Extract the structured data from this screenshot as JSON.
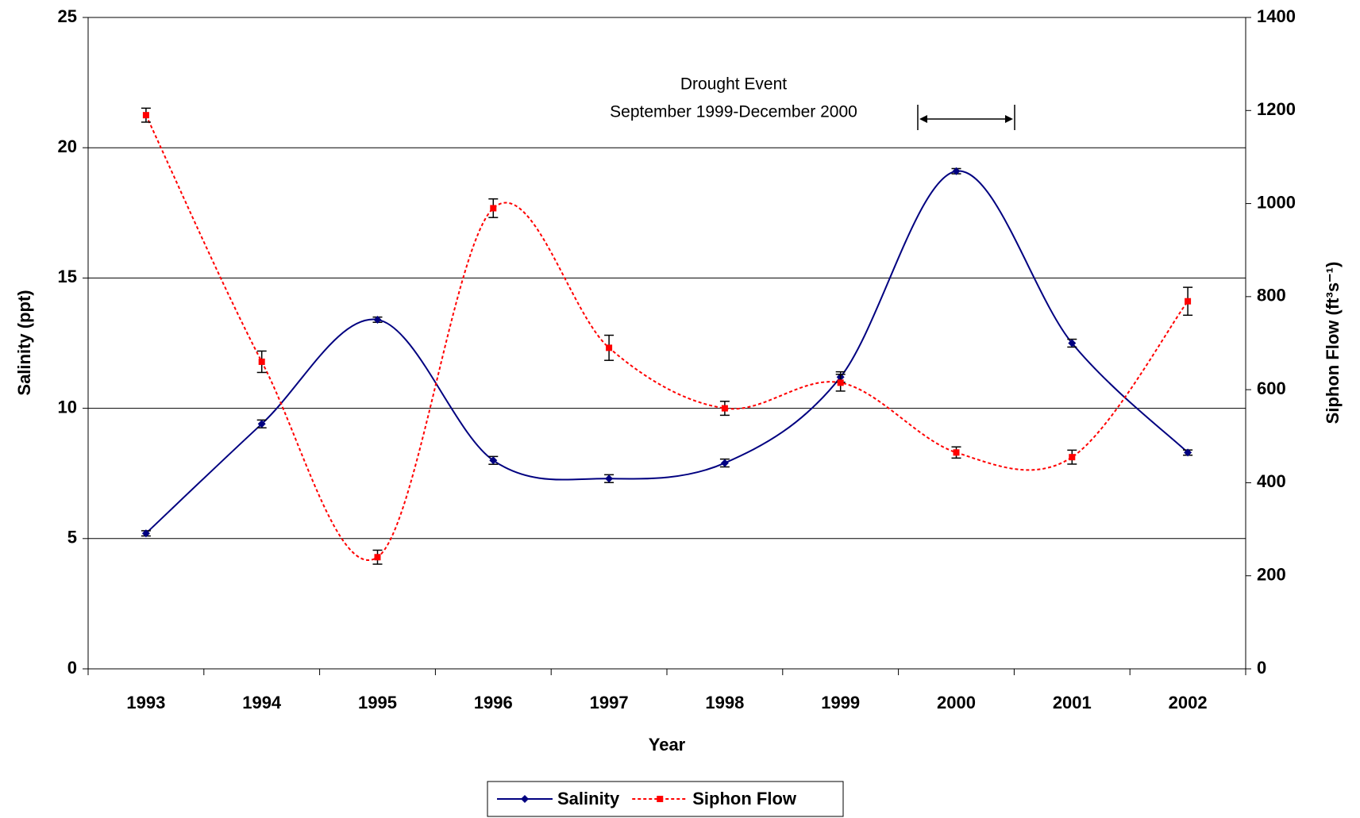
{
  "chart_data": {
    "type": "line",
    "x_label": "Year",
    "y_label": "Salinity (ppt)",
    "y2_label": "Siphon Flow (ft³s⁻¹)",
    "annotations": [
      "Drought Event",
      "September 1999-December 2000"
    ],
    "categories": [
      "1993",
      "1994",
      "1995",
      "1996",
      "1997",
      "1998",
      "1999",
      "2000",
      "2001",
      "2002"
    ],
    "series": [
      {
        "name": "Salinity",
        "color": "#000080",
        "marker": "diamond",
        "line_style": "solid",
        "values": [
          5.2,
          9.4,
          13.4,
          8.0,
          7.3,
          7.9,
          11.2,
          19.1,
          12.5,
          8.3
        ],
        "errors": [
          0.1,
          0.15,
          0.1,
          0.15,
          0.15,
          0.15,
          0.2,
          0.1,
          0.15,
          0.1
        ]
      },
      {
        "name": "Siphon Flow",
        "color": "#ff0000",
        "marker": "square",
        "line_style": "dotted",
        "axis": "y2",
        "values": [
          1190,
          660,
          240,
          990,
          690,
          560,
          615,
          465,
          455,
          790
        ],
        "errors": [
          15,
          23,
          15,
          20,
          27,
          15,
          18,
          12,
          15,
          30
        ]
      }
    ],
    "ylim": [
      0,
      25
    ],
    "yticks": [
      0,
      5,
      10,
      15,
      20,
      25
    ],
    "y2lim": [
      0,
      1400
    ],
    "y2ticks": [
      0,
      200,
      400,
      600,
      800,
      1000,
      1200,
      1400
    ],
    "grid": true,
    "legend": "bottom"
  }
}
